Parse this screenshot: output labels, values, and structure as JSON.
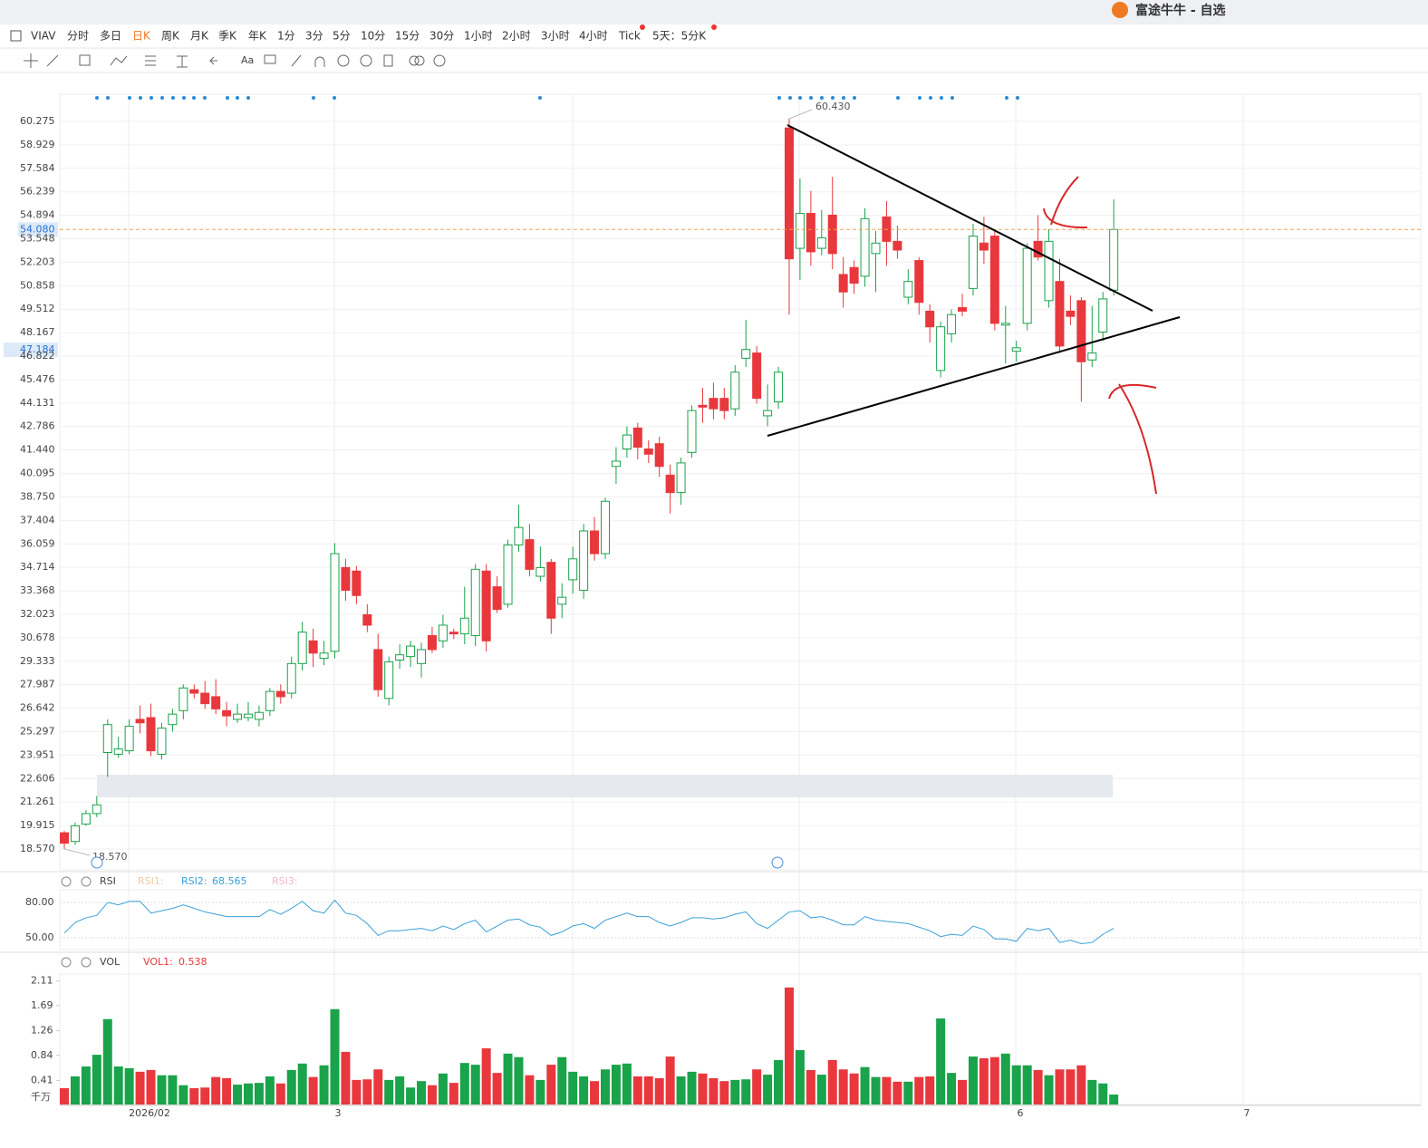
{
  "window_title": "富途牛牛 - 自选",
  "toolbar": {
    "symbol": "VIAV",
    "periods": [
      "分时",
      "多日",
      "日K",
      "周K",
      "月K",
      "季K",
      "年K",
      "1分",
      "3分",
      "5分",
      "10分",
      "15分",
      "30分",
      "1小时",
      "2小时",
      "3小时",
      "4小时",
      "Tick",
      "5天：5分K"
    ],
    "active": "日K"
  },
  "chart_data": {
    "type": "candlestick",
    "up_color": "#1aa34a",
    "down_color": "#e8383d",
    "candles": [
      [
        19.5,
        19.6,
        18.57,
        18.9
      ],
      [
        19.0,
        20.1,
        18.8,
        19.9
      ],
      [
        20.0,
        20.8,
        19.9,
        20.6
      ],
      [
        20.6,
        21.6,
        20.4,
        21.1
      ],
      [
        24.1,
        26.0,
        22.7,
        25.7
      ],
      [
        24.0,
        25.0,
        23.8,
        24.3
      ],
      [
        24.2,
        26.0,
        24.0,
        25.6
      ],
      [
        26.0,
        26.8,
        25.2,
        25.8
      ],
      [
        26.1,
        26.9,
        23.9,
        24.2
      ],
      [
        24.0,
        25.8,
        23.7,
        25.5
      ],
      [
        25.7,
        26.6,
        25.3,
        26.3
      ],
      [
        26.5,
        28.0,
        26.0,
        27.8
      ],
      [
        27.7,
        28.0,
        27.2,
        27.5
      ],
      [
        27.5,
        28.2,
        26.6,
        26.9
      ],
      [
        27.3,
        28.3,
        26.3,
        26.6
      ],
      [
        26.5,
        27.0,
        25.6,
        26.2
      ],
      [
        26.0,
        26.9,
        25.8,
        26.3
      ],
      [
        26.1,
        27.0,
        25.9,
        26.3
      ],
      [
        26.0,
        26.8,
        25.6,
        26.4
      ],
      [
        26.5,
        27.8,
        26.2,
        27.6
      ],
      [
        27.6,
        28.0,
        26.9,
        27.3
      ],
      [
        27.5,
        29.6,
        27.2,
        29.2
      ],
      [
        29.2,
        31.6,
        28.8,
        31.0
      ],
      [
        30.5,
        31.2,
        29.0,
        29.8
      ],
      [
        29.5,
        30.5,
        29.1,
        29.8
      ],
      [
        29.9,
        36.1,
        29.5,
        35.5
      ],
      [
        34.7,
        35.2,
        32.8,
        33.4
      ],
      [
        34.5,
        34.8,
        32.6,
        33.1
      ],
      [
        32.0,
        32.6,
        31.0,
        31.4
      ],
      [
        30.0,
        30.9,
        27.3,
        27.7
      ],
      [
        27.2,
        29.6,
        26.8,
        29.3
      ],
      [
        29.4,
        30.3,
        28.9,
        29.7
      ],
      [
        29.6,
        30.5,
        29.0,
        30.2
      ],
      [
        29.2,
        30.4,
        28.4,
        30.0
      ],
      [
        30.8,
        31.3,
        29.8,
        30.0
      ],
      [
        30.5,
        32.0,
        30.1,
        31.4
      ],
      [
        31.0,
        31.2,
        30.6,
        30.9
      ],
      [
        30.9,
        33.6,
        30.3,
        31.8
      ],
      [
        30.8,
        34.9,
        30.2,
        34.6
      ],
      [
        34.5,
        34.9,
        29.9,
        30.5
      ],
      [
        33.6,
        34.2,
        32.1,
        32.3
      ],
      [
        32.6,
        36.3,
        32.4,
        36.0
      ],
      [
        36.0,
        38.3,
        35.6,
        37.0
      ],
      [
        36.3,
        37.2,
        34.2,
        34.6
      ],
      [
        34.2,
        35.9,
        33.9,
        34.7
      ],
      [
        35.0,
        35.2,
        30.9,
        31.8
      ],
      [
        32.6,
        33.8,
        31.8,
        33.0
      ],
      [
        34.0,
        35.9,
        33.2,
        35.2
      ],
      [
        33.4,
        37.2,
        32.9,
        36.8
      ],
      [
        36.8,
        37.6,
        35.1,
        35.5
      ],
      [
        35.5,
        38.7,
        35.2,
        38.5
      ],
      [
        40.5,
        41.6,
        39.5,
        40.8
      ],
      [
        41.5,
        42.8,
        41.0,
        42.3
      ],
      [
        42.7,
        43.0,
        40.9,
        41.6
      ],
      [
        41.5,
        42.0,
        40.7,
        41.2
      ],
      [
        41.8,
        42.2,
        39.9,
        40.5
      ],
      [
        40.0,
        40.6,
        37.8,
        39.0
      ],
      [
        39.0,
        41.0,
        38.3,
        40.7
      ],
      [
        41.3,
        44.0,
        41.0,
        43.7
      ],
      [
        44.0,
        45.0,
        43.0,
        43.9
      ],
      [
        44.4,
        45.3,
        43.2,
        43.8
      ],
      [
        44.4,
        45.0,
        43.2,
        43.7
      ],
      [
        43.8,
        46.3,
        43.4,
        45.9
      ],
      [
        46.7,
        48.9,
        46.2,
        47.2
      ],
      [
        47.0,
        47.4,
        44.1,
        44.4
      ],
      [
        43.4,
        45.2,
        42.8,
        43.7
      ],
      [
        44.2,
        46.2,
        43.8,
        45.9
      ],
      [
        59.9,
        60.43,
        49.2,
        52.4
      ],
      [
        53.0,
        57.0,
        51.2,
        55.0
      ],
      [
        55.0,
        56.3,
        52.0,
        52.8
      ],
      [
        53.0,
        55.2,
        52.6,
        53.6
      ],
      [
        54.9,
        57.1,
        51.8,
        52.7
      ],
      [
        51.5,
        52.5,
        49.6,
        50.5
      ],
      [
        51.9,
        52.3,
        50.4,
        51.0
      ],
      [
        51.4,
        55.3,
        50.8,
        54.7
      ],
      [
        52.7,
        54.0,
        50.5,
        53.3
      ],
      [
        54.8,
        55.7,
        52.0,
        53.4
      ],
      [
        53.4,
        54.3,
        52.4,
        52.9
      ],
      [
        50.2,
        51.8,
        49.8,
        51.1
      ],
      [
        52.3,
        52.5,
        49.2,
        49.9
      ],
      [
        49.4,
        49.8,
        47.6,
        48.5
      ],
      [
        46.0,
        48.8,
        45.6,
        48.5
      ],
      [
        48.1,
        49.5,
        47.6,
        49.2
      ],
      [
        49.6,
        50.4,
        49.1,
        49.4
      ],
      [
        50.7,
        54.4,
        50.3,
        53.7
      ],
      [
        53.3,
        54.8,
        52.1,
        52.9
      ],
      [
        53.7,
        54.0,
        48.3,
        48.7
      ],
      [
        48.6,
        49.7,
        46.4,
        48.7
      ],
      [
        47.1,
        47.7,
        46.5,
        47.3
      ],
      [
        48.7,
        53.3,
        48.3,
        53.0
      ],
      [
        53.4,
        54.9,
        52.3,
        52.5
      ],
      [
        50.0,
        54.1,
        49.6,
        53.4
      ],
      [
        51.1,
        52.4,
        47.0,
        47.4
      ],
      [
        49.4,
        50.3,
        48.6,
        49.1
      ],
      [
        50.0,
        50.2,
        44.2,
        46.5
      ],
      [
        46.6,
        49.7,
        46.2,
        47.0
      ],
      [
        48.2,
        50.5,
        47.7,
        50.1
      ],
      [
        50.6,
        55.8,
        50.3,
        54.08
      ]
    ],
    "ylim": [
      17.375,
      61.833
    ],
    "yticks": [
      60.275,
      58.929,
      57.584,
      56.239,
      54.894,
      53.548,
      52.203,
      50.858,
      49.512,
      48.167,
      46.822,
      45.476,
      44.131,
      42.786,
      {
        "value": 41.44,
        "label": "41.440"
      },
      40.095,
      {
        "value": 38.75,
        "label": "38.750"
      },
      37.404,
      36.059,
      34.714,
      33.368,
      32.023,
      30.678,
      29.333,
      27.987,
      26.642,
      25.297,
      23.951,
      22.606,
      21.261,
      19.915,
      {
        "value": 18.57,
        "label": "18.570"
      }
    ],
    "last_price": {
      "value": 54.08,
      "label": "54.080"
    },
    "cursor_price": {
      "value": 47.184,
      "label": "47.184"
    },
    "high_label": "60.430",
    "low_label": "18.570",
    "x_labels": [
      "2026/02",
      "3",
      "6",
      "7"
    ],
    "rsi": {
      "title": "RSI",
      "legend": [
        "RSI1:",
        "RSI2:",
        "RSI3:"
      ],
      "current": "68.565",
      "color": "#3aa0d8",
      "values": [
        54,
        63,
        67,
        69,
        80,
        78,
        81,
        81,
        71,
        73,
        75,
        78,
        75,
        72,
        70,
        68,
        68,
        68,
        68,
        74,
        70,
        75,
        81,
        73,
        71,
        82,
        71,
        69,
        62,
        52,
        56,
        56,
        57,
        58,
        56,
        60,
        57,
        62,
        65,
        55,
        60,
        65,
        66,
        61,
        59,
        52,
        55,
        60,
        62,
        58,
        65,
        68,
        71,
        68,
        68,
        63,
        60,
        63,
        67,
        67,
        66,
        67,
        70,
        72,
        62,
        58,
        65,
        72,
        73,
        67,
        68,
        65,
        61,
        61,
        68,
        65,
        64,
        63,
        62,
        59,
        56,
        51,
        53,
        52,
        60,
        57,
        49,
        49,
        47,
        58,
        56,
        58,
        46,
        48,
        45,
        46,
        53,
        58
      ],
      "ylim": [
        40,
        90.8
      ],
      "yticks": [
        {
          "value": 80,
          "label": "80.00"
        },
        {
          "value": 50,
          "label": "50.00"
        }
      ]
    },
    "volume": {
      "title": "VOL",
      "legend": "VOL1:",
      "current": "0.538",
      "unit": "千万",
      "values": [
        0.28,
        0.48,
        0.65,
        0.85,
        1.46,
        0.65,
        0.62,
        0.56,
        0.59,
        0.5,
        0.5,
        0.33,
        0.28,
        0.29,
        0.47,
        0.45,
        0.34,
        0.36,
        0.37,
        0.48,
        0.36,
        0.59,
        0.7,
        0.47,
        0.67,
        1.63,
        0.9,
        0.42,
        0.43,
        0.6,
        0.42,
        0.48,
        0.29,
        0.4,
        0.33,
        0.53,
        0.37,
        0.71,
        0.68,
        0.96,
        0.54,
        0.87,
        0.81,
        0.5,
        0.42,
        0.68,
        0.81,
        0.56,
        0.48,
        0.4,
        0.6,
        0.68,
        0.7,
        0.48,
        0.48,
        0.45,
        0.82,
        0.48,
        0.56,
        0.53,
        0.45,
        0.4,
        0.42,
        0.43,
        0.6,
        0.51,
        0.76,
        2.0,
        0.93,
        0.59,
        0.51,
        0.76,
        0.6,
        0.53,
        0.64,
        0.47,
        0.47,
        0.39,
        0.39,
        0.47,
        0.48,
        1.47,
        0.54,
        0.42,
        0.82,
        0.79,
        0.81,
        0.87,
        0.67,
        0.67,
        0.59,
        0.5,
        0.6,
        0.6,
        0.67,
        0.42,
        0.36,
        0.17
      ],
      "ylim": [
        0,
        2.23
      ],
      "yticks": [
        0.41,
        0.84,
        1.26,
        1.69,
        2.11
      ]
    }
  }
}
